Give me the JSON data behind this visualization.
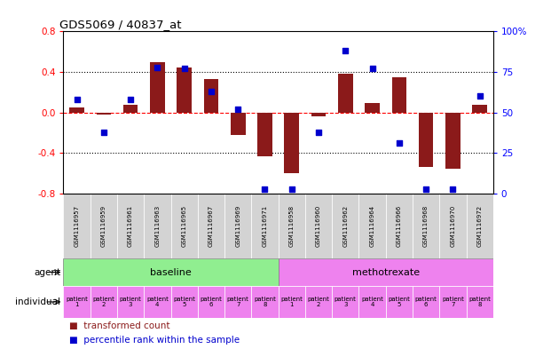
{
  "title": "GDS5069 / 40837_at",
  "samples": [
    "GSM1116957",
    "GSM1116959",
    "GSM1116961",
    "GSM1116963",
    "GSM1116965",
    "GSM1116967",
    "GSM1116969",
    "GSM1116971",
    "GSM1116958",
    "GSM1116960",
    "GSM1116962",
    "GSM1116964",
    "GSM1116966",
    "GSM1116968",
    "GSM1116970",
    "GSM1116972"
  ],
  "bar_values": [
    0.05,
    -0.02,
    0.08,
    0.5,
    0.44,
    0.33,
    -0.22,
    -0.43,
    -0.6,
    -0.04,
    0.38,
    0.09,
    0.35,
    -0.54,
    -0.55,
    0.08
  ],
  "percentile_values": [
    58,
    38,
    58,
    78,
    77,
    63,
    52,
    3,
    3,
    38,
    88,
    77,
    31,
    3,
    3,
    60
  ],
  "ylim_left": [
    -0.8,
    0.8
  ],
  "ylim_right": [
    0,
    100
  ],
  "yticks_left": [
    -0.8,
    -0.4,
    0.0,
    0.4,
    0.8
  ],
  "yticks_right": [
    0,
    25,
    50,
    75,
    100
  ],
  "ytick_labels_right": [
    "0",
    "25",
    "50",
    "75",
    "100%"
  ],
  "hlines_dotted": [
    -0.4,
    0.4
  ],
  "hline_dashed": 0.0,
  "bar_color": "#8B1A1A",
  "dot_color": "#0000CD",
  "baseline_color": "#98FB98",
  "methotrexate_color": "#EE82EE",
  "sample_box_color": "#D3D3D3",
  "patient_cell_color": "#EE82EE",
  "groups": [
    {
      "label": "baseline",
      "start": 0,
      "end": 8,
      "color": "#90EE90"
    },
    {
      "label": "methotrexate",
      "start": 8,
      "end": 16,
      "color": "#EE82EE"
    }
  ],
  "legend_bar_label": "transformed count",
  "legend_dot_label": "percentile rank within the sample",
  "agent_label": "agent",
  "individual_label": "individual"
}
